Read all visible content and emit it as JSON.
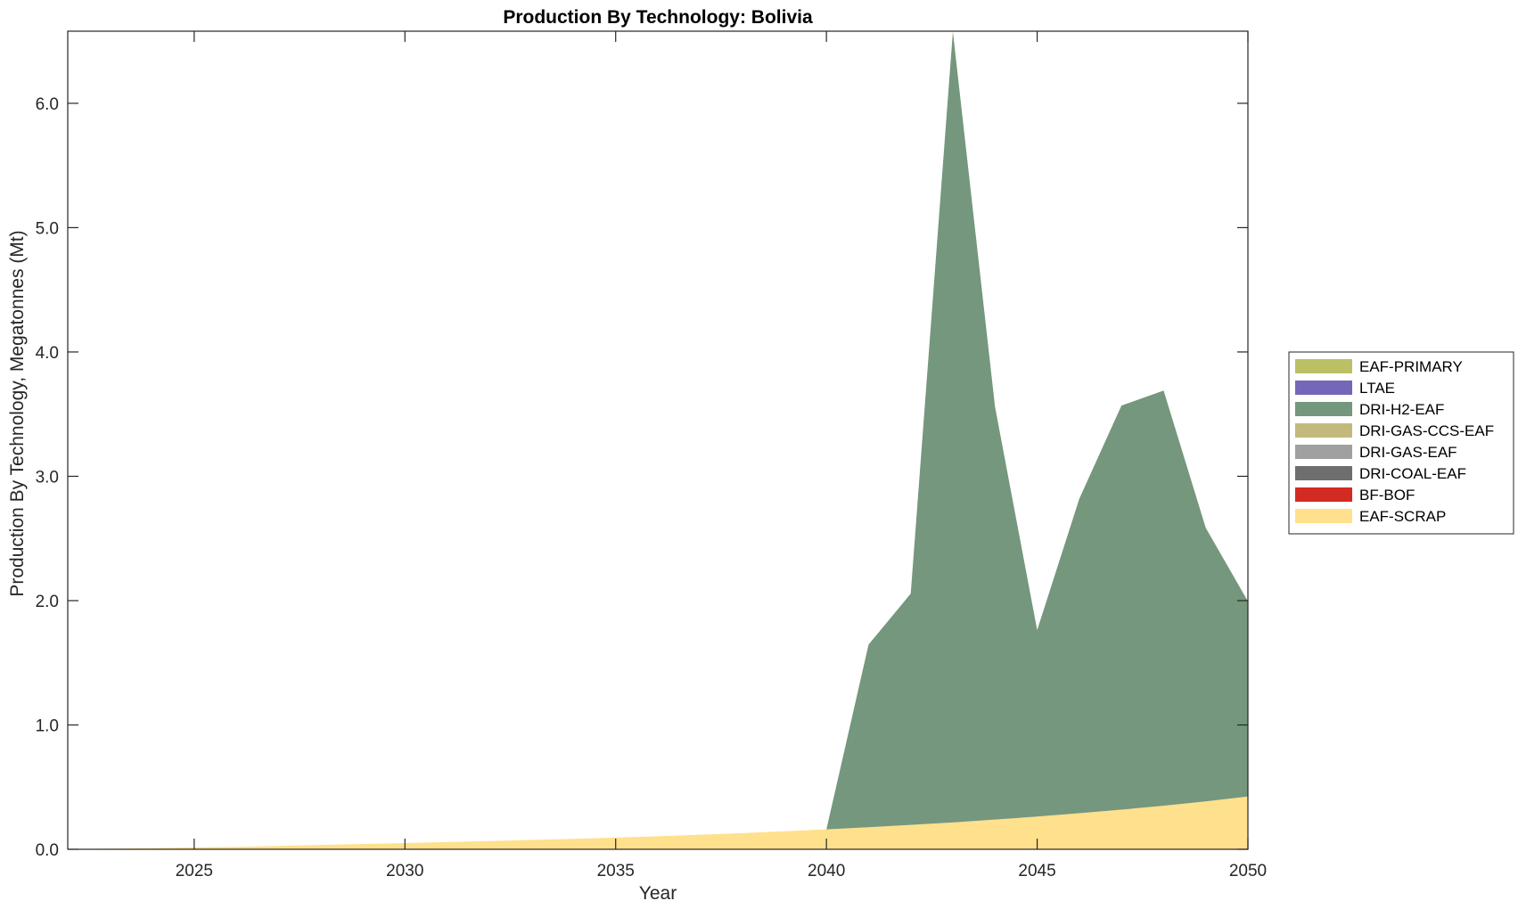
{
  "chart_data": {
    "type": "area",
    "stacked": true,
    "title": "Production By Technology: Bolivia",
    "xlabel": "Year",
    "ylabel": "Production By Technology, Megatonnes (Mt)",
    "xlim": [
      2022,
      2050
    ],
    "ylim": [
      0,
      6.58
    ],
    "xticks": [
      2025,
      2030,
      2035,
      2040,
      2045,
      2050
    ],
    "yticks": [
      0,
      1,
      2,
      3,
      4,
      5,
      6
    ],
    "ytick_labels": [
      "0.0",
      "1.0",
      "2.0",
      "3.0",
      "4.0",
      "5.0",
      "6.0"
    ],
    "grid": false,
    "legend_position": "right",
    "x": [
      2022,
      2023,
      2024,
      2025,
      2026,
      2027,
      2028,
      2029,
      2030,
      2031,
      2032,
      2033,
      2034,
      2035,
      2036,
      2037,
      2038,
      2039,
      2040,
      2041,
      2042,
      2043,
      2044,
      2045,
      2046,
      2047,
      2048,
      2049,
      2050
    ],
    "series": [
      {
        "name": "EAF-SCRAP",
        "color": "#FFE08C",
        "values": [
          0,
          0.005,
          0.01,
          0.015,
          0.02,
          0.027,
          0.035,
          0.042,
          0.05,
          0.058,
          0.066,
          0.075,
          0.084,
          0.094,
          0.105,
          0.117,
          0.13,
          0.145,
          0.16,
          0.177,
          0.196,
          0.216,
          0.239,
          0.263,
          0.29,
          0.319,
          0.35,
          0.385,
          0.425
        ]
      },
      {
        "name": "BF-BOF",
        "color": "#D42A24",
        "values": [
          0,
          0,
          0,
          0,
          0,
          0,
          0,
          0,
          0,
          0,
          0,
          0,
          0,
          0,
          0,
          0,
          0,
          0,
          0,
          0,
          0,
          0,
          0,
          0,
          0,
          0,
          0,
          0,
          0
        ]
      },
      {
        "name": "DRI-COAL-EAF",
        "color": "#6E6E6E",
        "values": [
          0,
          0,
          0,
          0,
          0,
          0,
          0,
          0,
          0,
          0,
          0,
          0,
          0,
          0,
          0,
          0,
          0,
          0,
          0,
          0,
          0,
          0,
          0,
          0,
          0,
          0,
          0,
          0,
          0
        ]
      },
      {
        "name": "DRI-GAS-EAF",
        "color": "#A0A0A0",
        "values": [
          0,
          0,
          0,
          0,
          0,
          0,
          0,
          0,
          0,
          0,
          0,
          0,
          0,
          0,
          0,
          0,
          0,
          0,
          0,
          0,
          0,
          0,
          0,
          0,
          0,
          0,
          0,
          0,
          0
        ]
      },
      {
        "name": "DRI-GAS-CCS-EAF",
        "color": "#C4B97D",
        "values": [
          0,
          0,
          0,
          0,
          0,
          0,
          0,
          0,
          0,
          0,
          0,
          0,
          0,
          0,
          0,
          0,
          0,
          0,
          0,
          0,
          0,
          0,
          0,
          0,
          0,
          0,
          0,
          0,
          0
        ]
      },
      {
        "name": "DRI-H2-EAF",
        "color": "#75977D",
        "values": [
          0,
          0,
          0,
          0,
          0,
          0,
          0,
          0,
          0,
          0,
          0,
          0,
          0,
          0,
          0,
          0,
          0,
          0,
          0,
          1.47,
          1.86,
          6.36,
          3.32,
          1.5,
          2.53,
          3.25,
          3.34,
          2.2,
          1.57
        ]
      },
      {
        "name": "LTAE",
        "color": "#7466B8",
        "values": [
          0,
          0,
          0,
          0,
          0,
          0,
          0,
          0,
          0,
          0,
          0,
          0,
          0,
          0,
          0,
          0,
          0,
          0,
          0,
          0,
          0,
          0,
          0,
          0,
          0,
          0,
          0,
          0,
          0
        ]
      },
      {
        "name": "EAF-PRIMARY",
        "color": "#BCC065",
        "values": [
          0,
          0,
          0,
          0,
          0,
          0,
          0,
          0,
          0,
          0,
          0,
          0,
          0,
          0,
          0,
          0,
          0,
          0,
          0,
          0,
          0,
          0,
          0,
          0,
          0,
          0,
          0,
          0,
          0
        ]
      }
    ],
    "legend_order": [
      "EAF-PRIMARY",
      "LTAE",
      "DRI-H2-EAF",
      "DRI-GAS-CCS-EAF",
      "DRI-GAS-EAF",
      "DRI-COAL-EAF",
      "BF-BOF",
      "EAF-SCRAP"
    ]
  }
}
